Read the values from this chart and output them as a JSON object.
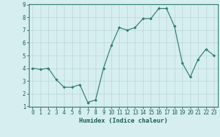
{
  "x": [
    0,
    1,
    2,
    3,
    4,
    5,
    6,
    7,
    8,
    9,
    10,
    11,
    12,
    13,
    14,
    15,
    16,
    17,
    18,
    19,
    20,
    21,
    22,
    23
  ],
  "y": [
    4.0,
    3.9,
    4.0,
    3.1,
    2.5,
    2.5,
    2.7,
    1.3,
    1.5,
    4.0,
    5.8,
    7.2,
    7.0,
    7.2,
    7.9,
    7.9,
    8.7,
    8.7,
    7.3,
    4.4,
    3.3,
    4.7,
    5.5,
    5.0
  ],
  "xlabel": "Humidex (Indice chaleur)",
  "ylim": [
    1,
    9
  ],
  "xlim": [
    -0.5,
    23.5
  ],
  "yticks": [
    1,
    2,
    3,
    4,
    5,
    6,
    7,
    8,
    9
  ],
  "xticks": [
    0,
    1,
    2,
    3,
    4,
    5,
    6,
    7,
    8,
    9,
    10,
    11,
    12,
    13,
    14,
    15,
    16,
    17,
    18,
    19,
    20,
    21,
    22,
    23
  ],
  "line_color": "#2e7d6e",
  "marker": "D",
  "marker_size": 1.8,
  "bg_color": "#d6eef0",
  "grid_color": "#b8d4d8",
  "axis_color": "#2e7d6e",
  "label_color": "#1a5c52",
  "xlabel_fontsize": 6.5,
  "tick_fontsize": 5.5,
  "line_width": 0.9
}
